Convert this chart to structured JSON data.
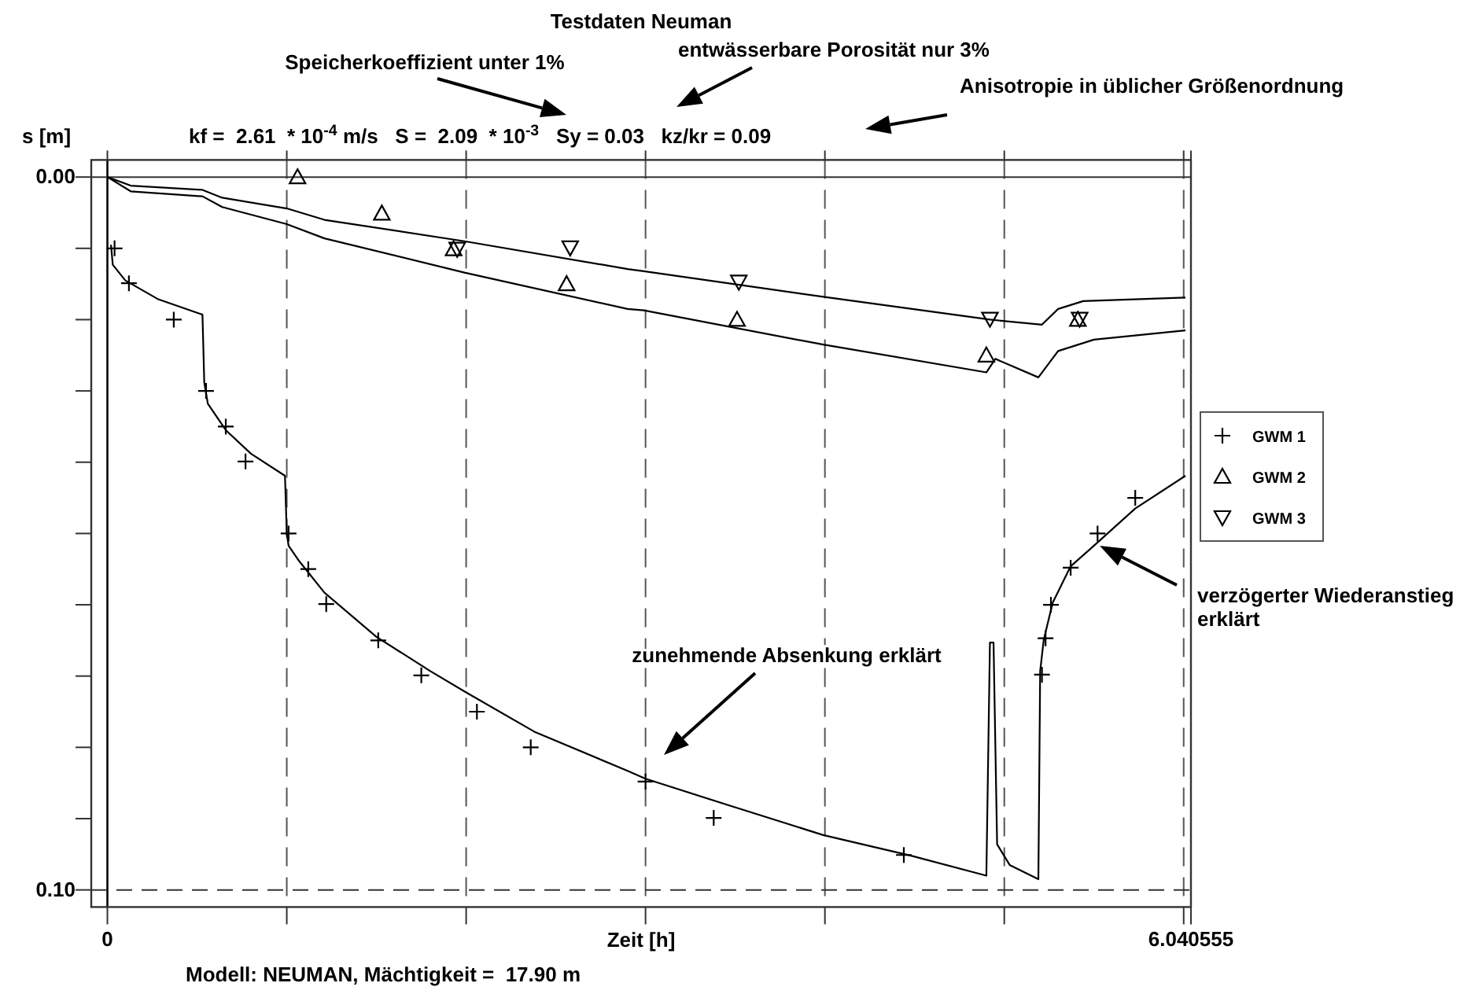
{
  "chart_data": {
    "type": "scatter",
    "title": "Testdaten Neuman",
    "xlabel": "Zeit [h]",
    "ylabel": "s [m]",
    "annotations": [
      "Speicherkoeffizient unter 1%",
      "entwässerbare Porosität nur 3%",
      "Anisotropie in üblicher Größenordnung",
      "kf =  2.61  * 10$^{-4}$ m/s   S =  2.09  * 10$^{-3}$   Sy = 0.03   kz/kr = 0.09",
      "zunehmende Absenkung erklärt",
      "verzögerter Wiederanstieg erklärt",
      "Modell: NEUMAN, Mächtigkeit =  17.90 m"
    ],
    "xlim": [
      -0.09,
      6.040555
    ],
    "ylim": [
      0.1024,
      -0.0024
    ],
    "xticks": [
      0,
      {
        "value": 1,
        "label": null
      },
      {
        "value": 2,
        "label": null
      },
      {
        "value": 3,
        "label": null
      },
      {
        "value": 4,
        "label": null
      },
      {
        "value": 5,
        "label": null
      },
      {
        "value": 6,
        "label": null
      },
      6.040555
    ],
    "yticks": [
      {
        "value": 0,
        "label": "0.00"
      },
      {
        "value": 0.01,
        "label": null
      },
      {
        "value": 0.02,
        "label": null
      },
      {
        "value": 0.03,
        "label": null
      },
      {
        "value": 0.04,
        "label": null
      },
      {
        "value": 0.05,
        "label": null
      },
      {
        "value": 0.06,
        "label": null
      },
      {
        "value": 0.07,
        "label": null
      },
      {
        "value": 0.08,
        "label": null
      },
      {
        "value": 0.09,
        "label": null
      },
      {
        "value": 0.1,
        "label": "0.10"
      }
    ],
    "grid": "x",
    "legend": "right",
    "ref_lines": [
      {
        "axis": "x",
        "value": 0,
        "line_style": "solid"
      },
      {
        "axis": "y",
        "value": 0,
        "line_style": "solid"
      },
      {
        "axis": "y",
        "value": 0.1,
        "line_style": "dashed"
      }
    ],
    "series": [
      {
        "name": "GWM 1",
        "marker": "cross",
        "color": "#000000",
        "x": [
          0.04,
          0.12,
          0.37,
          0.55,
          0.66,
          0.77,
          1.01,
          1.12,
          1.22,
          1.51,
          1.75,
          2.06,
          2.36,
          3.0,
          3.38,
          4.44,
          5.21,
          5.23,
          5.26,
          5.37,
          5.52,
          5.73
        ],
        "values": [
          0.01,
          0.0149,
          0.02,
          0.03,
          0.035,
          0.0399,
          0.05,
          0.055,
          0.0599,
          0.065,
          0.0699,
          0.075,
          0.08,
          0.0848,
          0.0899,
          0.0951,
          0.0698,
          0.0647,
          0.06,
          0.0548,
          0.05,
          0.045
        ]
      },
      {
        "name": "GWM 2",
        "marker": "triangle",
        "color": "#000000",
        "x": [
          1.06,
          1.53,
          1.93,
          2.56,
          3.51,
          4.9,
          5.41
        ],
        "values": [
          0.0,
          0.0051,
          0.0101,
          0.015,
          0.02,
          0.025,
          0.02
        ]
      },
      {
        "name": "GWM 3",
        "color": "#000000",
        "x": [
          1.95,
          2.58,
          3.52,
          4.92,
          5.42
        ],
        "values": [
          0.0101,
          0.0099,
          0.0147,
          0.0199,
          0.0199
        ]
      },
      {
        "type": "line",
        "marker": "none",
        "line_style": "solid",
        "color": "#000000",
        "x": [
          0.02,
          0.03,
          0.1,
          0.28,
          0.53,
          0.54,
          0.56,
          0.66,
          0.8,
          0.99,
          1.0,
          1.01,
          1.07,
          1.21,
          1.5,
          1.8,
          2.0,
          2.38,
          2.9,
          3.0,
          3.46,
          3.99,
          4.48,
          4.9,
          4.92,
          4.94,
          4.96,
          5.03,
          5.19,
          5.2,
          5.22,
          5.27,
          5.37,
          5.5,
          5.73,
          6.01
        ],
        "values": [
          0.0095,
          0.0123,
          0.0145,
          0.0171,
          0.0193,
          0.0288,
          0.0318,
          0.0355,
          0.0388,
          0.0419,
          0.05,
          0.0517,
          0.0539,
          0.0583,
          0.0645,
          0.0693,
          0.0723,
          0.0778,
          0.0833,
          0.0844,
          0.0881,
          0.0923,
          0.0952,
          0.098,
          0.0653,
          0.0653,
          0.0936,
          0.0965,
          0.0985,
          0.0693,
          0.0649,
          0.0597,
          0.0546,
          0.0517,
          0.0465,
          0.0419
        ]
      },
      {
        "type": "line",
        "marker": "none",
        "line_style": "solid",
        "color": "#000000",
        "x": [
          0,
          0.13,
          0.53,
          0.64,
          1.0,
          1.21,
          1.99,
          2.9,
          2.99,
          3.99,
          4.9,
          4.95,
          5.19,
          5.3,
          5.5,
          6.01
        ],
        "values": [
          0,
          0.002,
          0.0027,
          0.0042,
          0.0066,
          0.0086,
          0.0134,
          0.0185,
          0.0187,
          0.0235,
          0.0274,
          0.0255,
          0.0281,
          0.0244,
          0.0228,
          0.0215
        ]
      },
      {
        "type": "line",
        "marker": "none",
        "line_style": "solid",
        "color": "#000000",
        "x": [
          0,
          0.13,
          0.53,
          0.64,
          1.0,
          1.21,
          1.99,
          2.9,
          2.99,
          3.99,
          4.92,
          5.21,
          5.3,
          5.44,
          6.01
        ],
        "values": [
          0,
          0.0012,
          0.0018,
          0.0029,
          0.0044,
          0.006,
          0.009,
          0.0129,
          0.0132,
          0.0168,
          0.02,
          0.0207,
          0.0185,
          0.0174,
          0.0169
        ]
      }
    ]
  }
}
